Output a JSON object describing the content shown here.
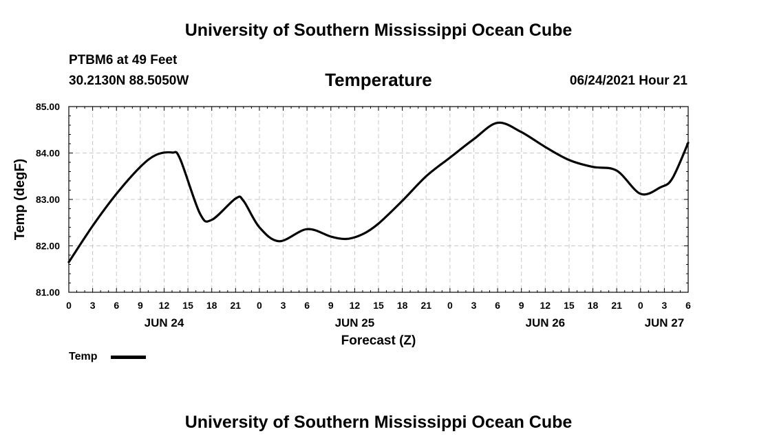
{
  "header": {
    "title": "University of Southern Mississippi Ocean Cube",
    "station": "PTBM6 at 49 Feet",
    "coordinates": "30.2130N  88.5050W",
    "variable": "Temperature",
    "datetime": "06/24/2021 Hour 21"
  },
  "footer": {
    "title": "University of Southern Mississippi Ocean Cube"
  },
  "legend": {
    "label": "Temp"
  },
  "chart_data": {
    "type": "line",
    "title": "Temperature",
    "xlabel": "Forecast (Z)",
    "ylabel": "Temp (degF)",
    "ylim": [
      81.0,
      85.0
    ],
    "y_ticks": [
      "81.00",
      "82.00",
      "83.00",
      "84.00",
      "85.00"
    ],
    "y_tick_values": [
      81,
      82,
      83,
      84,
      85
    ],
    "xlim": [
      0,
      78
    ],
    "x_ticks": [
      0,
      3,
      6,
      9,
      12,
      15,
      18,
      21,
      24,
      27,
      30,
      33,
      36,
      39,
      42,
      45,
      48,
      51,
      54,
      57,
      60,
      63,
      66,
      69,
      72,
      75,
      78
    ],
    "x_tick_labels": [
      "0",
      "3",
      "6",
      "9",
      "12",
      "15",
      "18",
      "21",
      "0",
      "3",
      "6",
      "9",
      "12",
      "15",
      "18",
      "21",
      "0",
      "3",
      "6",
      "9",
      "12",
      "15",
      "18",
      "21",
      "0",
      "3",
      "6"
    ],
    "date_labels": [
      {
        "label": "JUN 24",
        "hour": 12
      },
      {
        "label": "JUN 25",
        "hour": 36
      },
      {
        "label": "JUN 26",
        "hour": 60
      },
      {
        "label": "JUN 27",
        "hour": 75
      }
    ],
    "grid": true,
    "series": [
      {
        "name": "Temp",
        "color": "#000000",
        "x": [
          0,
          3,
          6,
          9,
          11,
          13,
          14,
          16.5,
          18,
          21,
          22,
          24,
          26.5,
          30,
          33,
          35,
          37,
          39,
          42,
          45,
          48,
          51,
          54,
          57,
          60,
          63,
          66,
          69,
          72,
          74.5,
          76,
          78
        ],
        "y": [
          81.65,
          82.43,
          83.12,
          83.7,
          83.96,
          84.01,
          83.88,
          82.7,
          82.56,
          83.02,
          82.97,
          82.4,
          82.1,
          82.36,
          82.2,
          82.15,
          82.25,
          82.48,
          82.97,
          83.5,
          83.9,
          84.3,
          84.65,
          84.45,
          84.13,
          83.85,
          83.7,
          83.62,
          83.12,
          83.26,
          83.45,
          84.22
        ]
      }
    ]
  }
}
